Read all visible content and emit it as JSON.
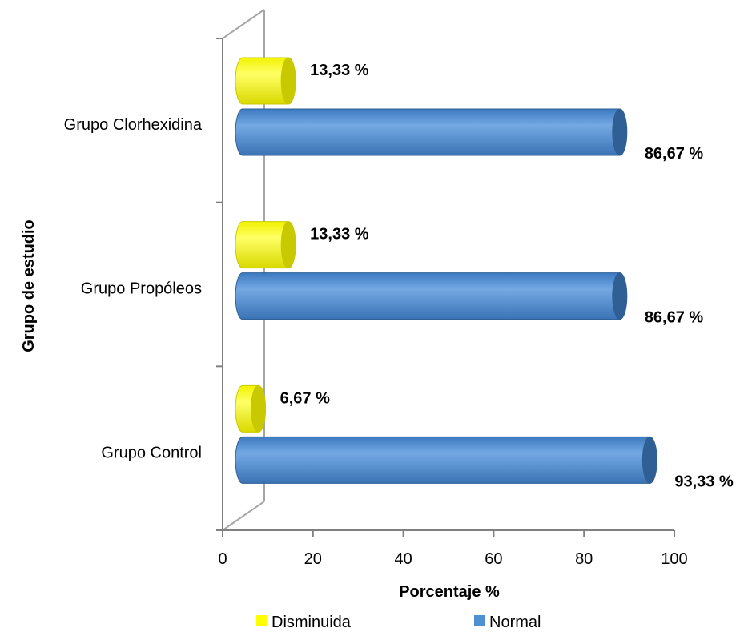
{
  "chart_data": {
    "type": "bar",
    "orientation": "horizontal",
    "three_d": true,
    "categories": [
      "Grupo Clorhexidina",
      "Grupo Propóleos",
      "Grupo Control"
    ],
    "series": [
      {
        "name": "Disminuida",
        "color": "#FFFF00",
        "values": [
          13.33,
          13.33,
          6.67
        ],
        "labels": [
          "13,33 %",
          "13,33 %",
          "6,67 %"
        ]
      },
      {
        "name": "Normal",
        "color": "#4F8FD4",
        "values": [
          86.67,
          86.67,
          93.33
        ],
        "labels": [
          "86,67 %",
          "86,67 %",
          "93,33 %"
        ]
      }
    ],
    "xlabel": "Porcentaje %",
    "ylabel": "Grupo de estudio",
    "xlim": [
      0,
      100
    ],
    "xticks": [
      "0",
      "20",
      "40",
      "60",
      "80",
      "100"
    ],
    "legend_position": "bottom",
    "grid": false
  }
}
